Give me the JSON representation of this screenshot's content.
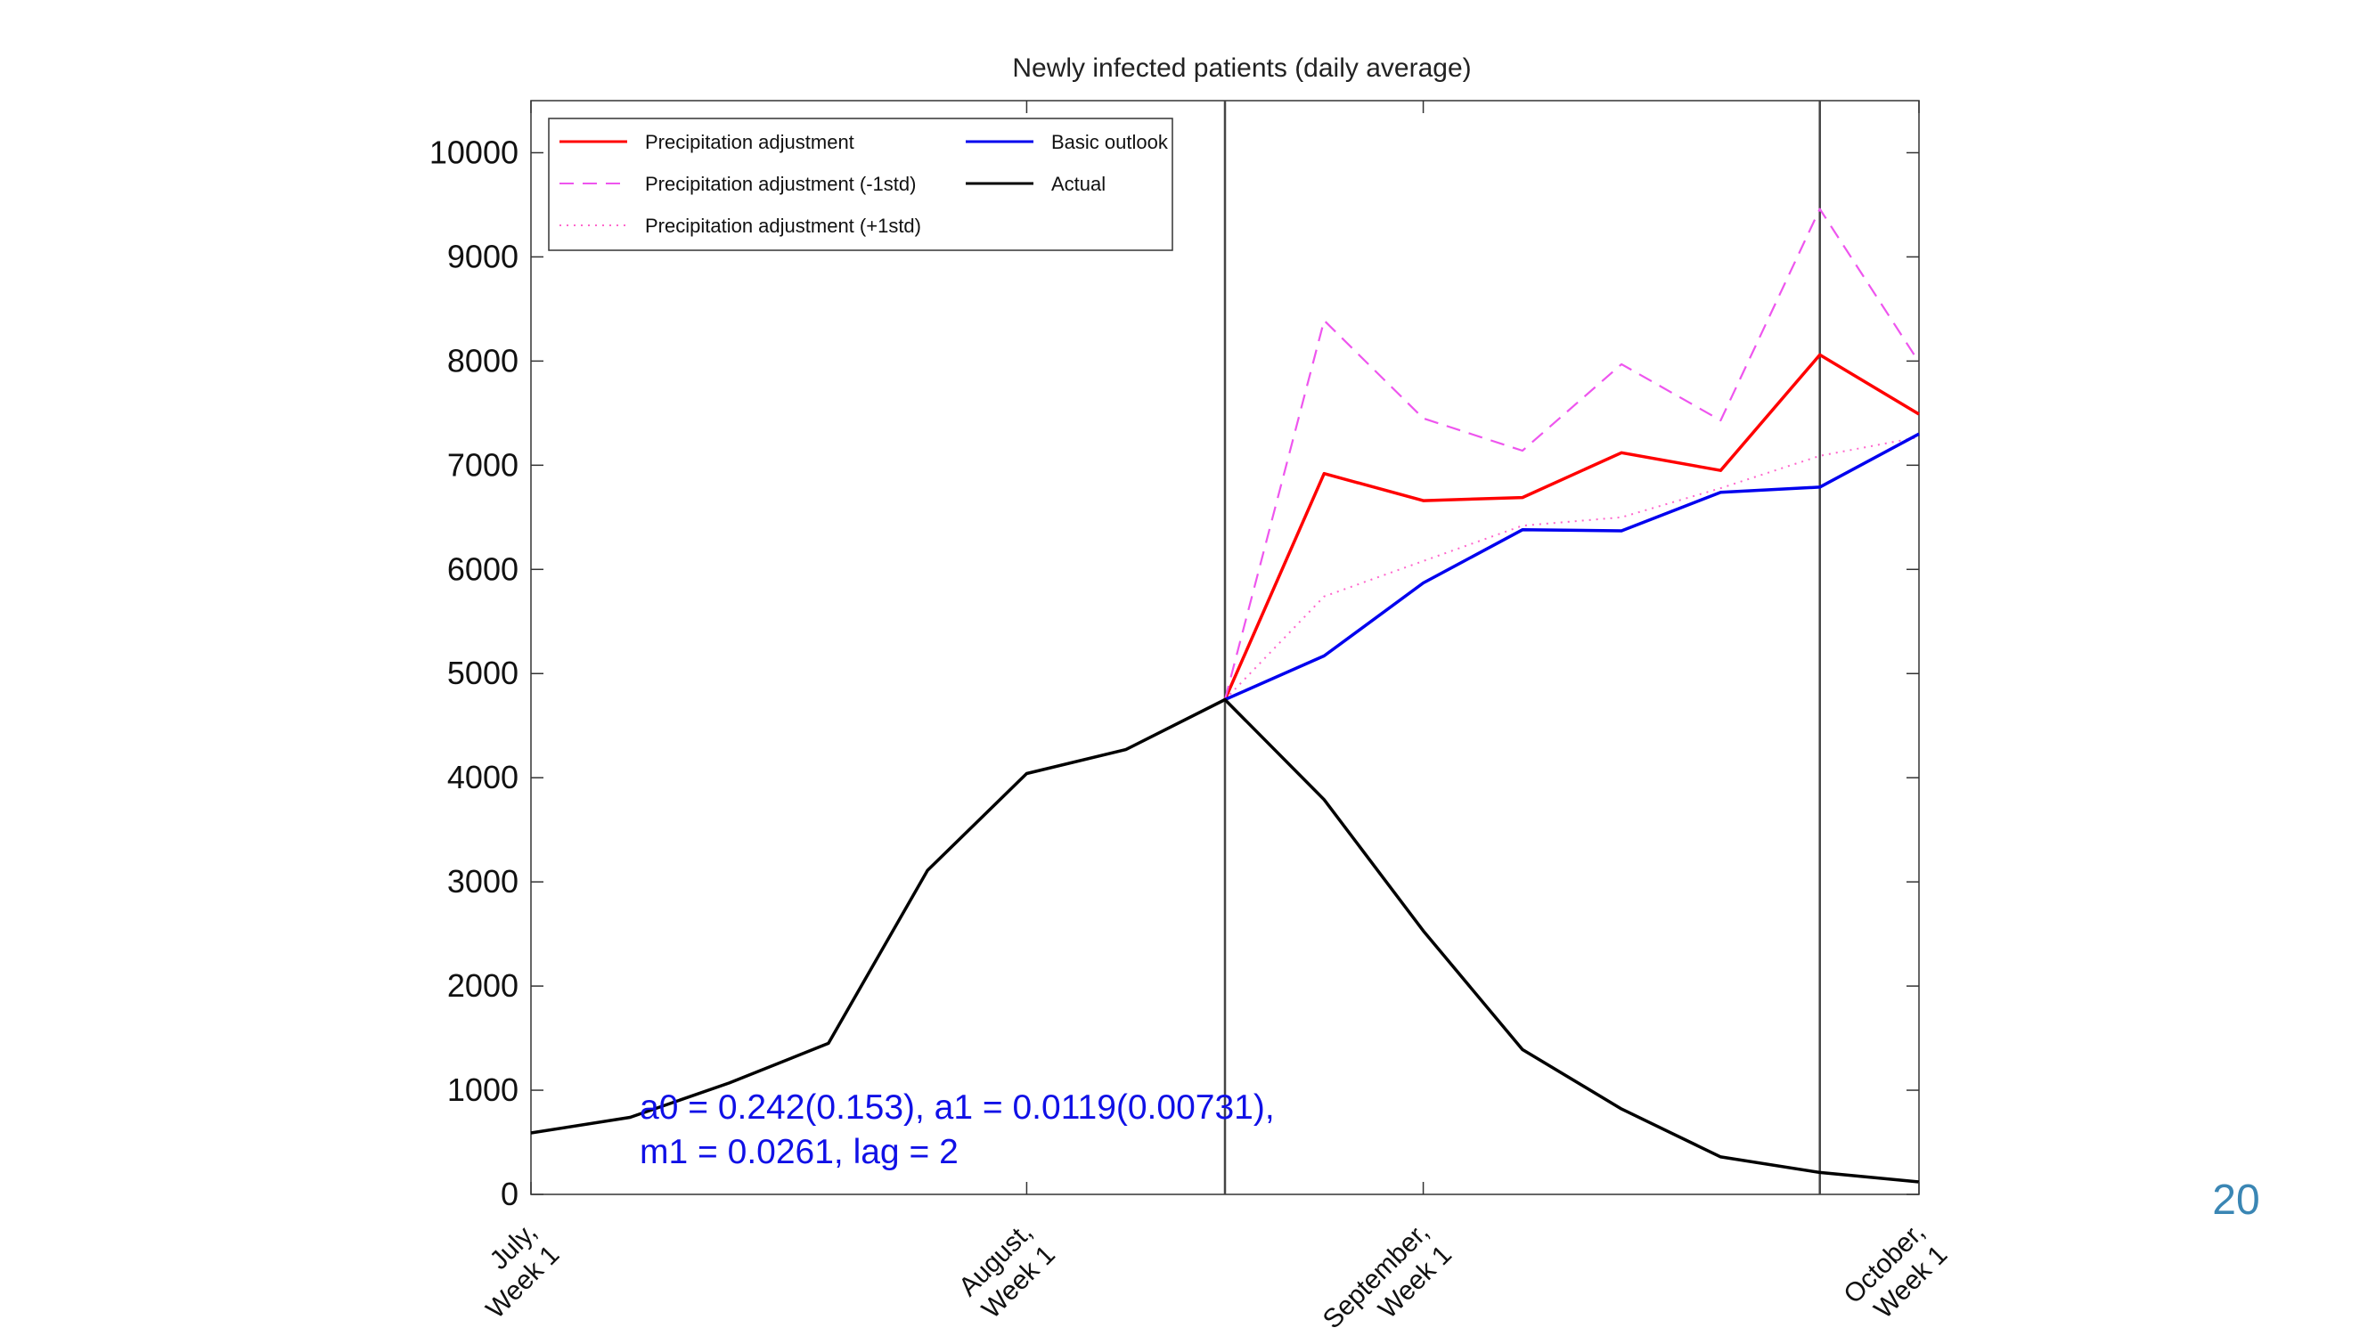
{
  "page_number": "20",
  "chart_data": {
    "type": "line",
    "title": "Newly infected patients (daily average)",
    "xlabel": "",
    "ylabel": "",
    "xlim": [
      0,
      14
    ],
    "ylim": [
      0,
      10500
    ],
    "yticks": [
      0,
      1000,
      2000,
      3000,
      4000,
      5000,
      6000,
      7000,
      8000,
      9000,
      10000
    ],
    "xticks": [
      {
        "x": 0,
        "label": [
          "July,",
          "Week 1"
        ]
      },
      {
        "x": 5,
        "label": [
          "August,",
          "Week 1"
        ]
      },
      {
        "x": 9,
        "label": [
          "September,",
          "Week 1"
        ]
      },
      {
        "x": 14,
        "label": [
          "October,",
          "Week 1"
        ]
      }
    ],
    "vlines": [
      7,
      13
    ],
    "grid": false,
    "legend_position": "top-left",
    "series": [
      {
        "name": "Precipitation adjustment",
        "color": "#ff0000",
        "style": "solid",
        "x": [
          7,
          8,
          9,
          10,
          11,
          12,
          13,
          14
        ],
        "y": [
          4750,
          6920,
          6660,
          6690,
          7120,
          6950,
          8060,
          7490
        ]
      },
      {
        "name": "Precipitation adjustment (-1std)",
        "color": "#ee55ee",
        "style": "dashed",
        "x": [
          7,
          8,
          9,
          10,
          11,
          12,
          13,
          14
        ],
        "y": [
          4750,
          8390,
          7450,
          7140,
          7970,
          7430,
          9460,
          7990
        ]
      },
      {
        "name": "Precipitation adjustment (+1std)",
        "color": "#ff66cc",
        "style": "dotted",
        "x": [
          7,
          8,
          9,
          10,
          11,
          12,
          13,
          14
        ],
        "y": [
          4750,
          5740,
          6080,
          6420,
          6500,
          6780,
          7090,
          7270
        ]
      },
      {
        "name": "Basic outlook",
        "color": "#0000ee",
        "style": "solid",
        "x": [
          7,
          8,
          9,
          10,
          11,
          12,
          13,
          14
        ],
        "y": [
          4750,
          5170,
          5870,
          6380,
          6370,
          6740,
          6790,
          7300
        ]
      },
      {
        "name": "Actual",
        "color": "#000000",
        "style": "solid",
        "x": [
          0,
          1,
          2,
          3,
          4,
          5,
          6,
          7,
          8,
          9,
          10,
          11,
          12,
          13,
          14
        ],
        "y": [
          590,
          740,
          1070,
          1450,
          3110,
          4040,
          4270,
          4750,
          3790,
          2530,
          1390,
          820,
          360,
          210,
          120
        ]
      }
    ],
    "annotation": [
      "a0 = 0.242(0.153), a1 = 0.0119(0.00731),",
      "m1 = 0.0261, lag = 2"
    ]
  }
}
